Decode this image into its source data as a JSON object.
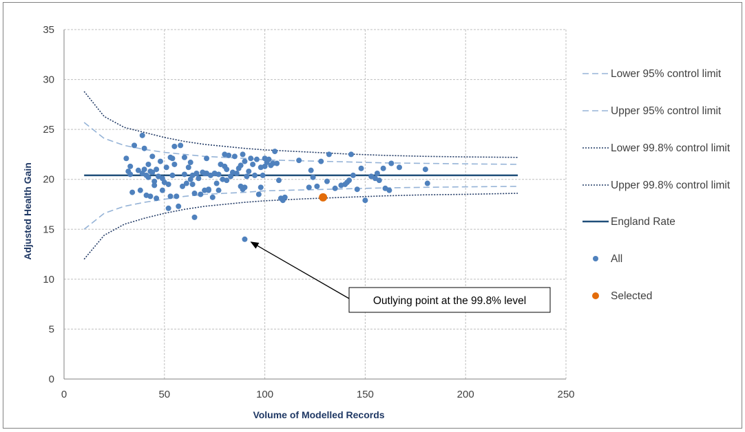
{
  "chart_data": {
    "type": "scatter",
    "title": "",
    "xlabel": "Volume of Modelled Records",
    "ylabel": "Adjusted Health Gain",
    "xlim": [
      0,
      250
    ],
    "ylim": [
      0,
      35
    ],
    "x_ticks": [
      "0",
      "50",
      "100",
      "150",
      "200",
      "250"
    ],
    "y_ticks": [
      "0",
      "5",
      "10",
      "15",
      "20",
      "25",
      "30",
      "35"
    ],
    "x_tick_values": [
      0,
      50,
      100,
      150,
      200,
      250
    ],
    "y_tick_values": [
      0,
      5,
      10,
      15,
      20,
      25,
      30,
      35
    ],
    "grid": true,
    "legend_position": "right",
    "england_rate": 20.4,
    "series": [
      {
        "name": "Lower 95% control limit",
        "kind": "dashed-line",
        "color": "#95b3d7",
        "points": [
          [
            10,
            15.0
          ],
          [
            20,
            16.6
          ],
          [
            30,
            17.3
          ],
          [
            40,
            17.7
          ],
          [
            50,
            18.0
          ],
          [
            60,
            18.3
          ],
          [
            70,
            18.5
          ],
          [
            80,
            18.6
          ],
          [
            90,
            18.7
          ],
          [
            100,
            18.85
          ],
          [
            120,
            18.95
          ],
          [
            140,
            19.05
          ],
          [
            160,
            19.15
          ],
          [
            180,
            19.2
          ],
          [
            200,
            19.25
          ],
          [
            226,
            19.3
          ]
        ]
      },
      {
        "name": "Upper 95% control limit",
        "kind": "dashed-line",
        "color": "#95b3d7",
        "points": [
          [
            10,
            25.7
          ],
          [
            20,
            24.1
          ],
          [
            30,
            23.4
          ],
          [
            40,
            23.0
          ],
          [
            50,
            22.7
          ],
          [
            60,
            22.5
          ],
          [
            70,
            22.3
          ],
          [
            80,
            22.2
          ],
          [
            90,
            22.1
          ],
          [
            100,
            21.95
          ],
          [
            120,
            21.85
          ],
          [
            140,
            21.75
          ],
          [
            160,
            21.65
          ],
          [
            180,
            21.6
          ],
          [
            200,
            21.55
          ],
          [
            226,
            21.5
          ]
        ]
      },
      {
        "name": "Lower 99.8% control limit",
        "kind": "dotted-line",
        "color": "#1f3864",
        "points": [
          [
            10,
            12.0
          ],
          [
            20,
            14.4
          ],
          [
            30,
            15.5
          ],
          [
            40,
            16.1
          ],
          [
            50,
            16.6
          ],
          [
            60,
            17.0
          ],
          [
            70,
            17.3
          ],
          [
            80,
            17.5
          ],
          [
            90,
            17.7
          ],
          [
            100,
            17.85
          ],
          [
            120,
            18.05
          ],
          [
            140,
            18.2
          ],
          [
            160,
            18.35
          ],
          [
            180,
            18.45
          ],
          [
            200,
            18.5
          ],
          [
            226,
            18.6
          ]
        ]
      },
      {
        "name": "Upper 99.8% control limit",
        "kind": "dotted-line",
        "color": "#1f3864",
        "points": [
          [
            10,
            28.8
          ],
          [
            20,
            26.3
          ],
          [
            30,
            25.2
          ],
          [
            40,
            24.7
          ],
          [
            50,
            24.2
          ],
          [
            60,
            23.8
          ],
          [
            70,
            23.5
          ],
          [
            80,
            23.3
          ],
          [
            90,
            23.1
          ],
          [
            100,
            22.95
          ],
          [
            120,
            22.75
          ],
          [
            140,
            22.55
          ],
          [
            160,
            22.4
          ],
          [
            180,
            22.3
          ],
          [
            200,
            22.25
          ],
          [
            226,
            22.2
          ]
        ]
      },
      {
        "name": "England Rate",
        "kind": "solid-line",
        "color": "#1f4e79",
        "points": [
          [
            10,
            20.4
          ],
          [
            226,
            20.4
          ]
        ]
      },
      {
        "name": "All",
        "kind": "points",
        "color": "#4f81bd",
        "points": [
          [
            31,
            22.1
          ],
          [
            32,
            20.8
          ],
          [
            33,
            21.3
          ],
          [
            33,
            20.5
          ],
          [
            34,
            18.7
          ],
          [
            35,
            23.4
          ],
          [
            37,
            20.9
          ],
          [
            38,
            18.9
          ],
          [
            39,
            24.4
          ],
          [
            39,
            20.6
          ],
          [
            40,
            23.1
          ],
          [
            40,
            21.0
          ],
          [
            41,
            20.4
          ],
          [
            41,
            18.4
          ],
          [
            42,
            21.5
          ],
          [
            42,
            20.2
          ],
          [
            43,
            20.8
          ],
          [
            43,
            18.3
          ],
          [
            44,
            22.3
          ],
          [
            44,
            20.7
          ],
          [
            45,
            19.8
          ],
          [
            45,
            19.4
          ],
          [
            46,
            18.1
          ],
          [
            46,
            21.0
          ],
          [
            47,
            20.3
          ],
          [
            48,
            21.8
          ],
          [
            49,
            18.9
          ],
          [
            49,
            20.1
          ],
          [
            50,
            19.7
          ],
          [
            51,
            21.2
          ],
          [
            52,
            19.5
          ],
          [
            52,
            17.1
          ],
          [
            53,
            22.2
          ],
          [
            53,
            18.3
          ],
          [
            54,
            22.1
          ],
          [
            54,
            20.4
          ],
          [
            55,
            23.3
          ],
          [
            55,
            21.5
          ],
          [
            56,
            18.3
          ],
          [
            57,
            17.3
          ],
          [
            58,
            23.4
          ],
          [
            59,
            19.3
          ],
          [
            60,
            22.2
          ],
          [
            60,
            20.5
          ],
          [
            61,
            19.6
          ],
          [
            62,
            21.2
          ],
          [
            63,
            21.7
          ],
          [
            63,
            20.0
          ],
          [
            64,
            19.5
          ],
          [
            64,
            20.4
          ],
          [
            65,
            18.6
          ],
          [
            65,
            16.2
          ],
          [
            66,
            20.6
          ],
          [
            67,
            20.1
          ],
          [
            68,
            18.5
          ],
          [
            69,
            20.7
          ],
          [
            70,
            20.6
          ],
          [
            70,
            18.9
          ],
          [
            71,
            22.1
          ],
          [
            71,
            20.6
          ],
          [
            72,
            19.0
          ],
          [
            72,
            18.9
          ],
          [
            73,
            20.4
          ],
          [
            74,
            18.2
          ],
          [
            75,
            20.6
          ],
          [
            76,
            19.6
          ],
          [
            77,
            20.5
          ],
          [
            77,
            18.9
          ],
          [
            78,
            21.5
          ],
          [
            79,
            20.0
          ],
          [
            80,
            22.5
          ],
          [
            80,
            21.3
          ],
          [
            81,
            21.0
          ],
          [
            81,
            19.9
          ],
          [
            82,
            22.4
          ],
          [
            83,
            20.3
          ],
          [
            84,
            20.7
          ],
          [
            85,
            22.3
          ],
          [
            86,
            20.6
          ],
          [
            87,
            21.1
          ],
          [
            88,
            21.4
          ],
          [
            88,
            19.3
          ],
          [
            89,
            22.5
          ],
          [
            89,
            19.0
          ],
          [
            90,
            21.8
          ],
          [
            90,
            19.2
          ],
          [
            90,
            14.0
          ],
          [
            91,
            20.3
          ],
          [
            92,
            20.8
          ],
          [
            93,
            22.1
          ],
          [
            94,
            21.5
          ],
          [
            95,
            20.4
          ],
          [
            96,
            22.0
          ],
          [
            97,
            18.5
          ],
          [
            98,
            21.2
          ],
          [
            98,
            19.2
          ],
          [
            99,
            20.4
          ],
          [
            100,
            22.1
          ],
          [
            100,
            21.3
          ],
          [
            101,
            21.7
          ],
          [
            102,
            22.0
          ],
          [
            103,
            21.4
          ],
          [
            104,
            21.6
          ],
          [
            105,
            22.8
          ],
          [
            106,
            21.6
          ],
          [
            107,
            19.9
          ],
          [
            108,
            18.1
          ],
          [
            109,
            17.9
          ],
          [
            110,
            18.2
          ],
          [
            117,
            21.9
          ],
          [
            122,
            19.2
          ],
          [
            123,
            20.9
          ],
          [
            124,
            20.2
          ],
          [
            126,
            19.3
          ],
          [
            128,
            21.8
          ],
          [
            131,
            19.8
          ],
          [
            132,
            22.5
          ],
          [
            135,
            19.1
          ],
          [
            138,
            19.4
          ],
          [
            140,
            19.5
          ],
          [
            141,
            19.7
          ],
          [
            142,
            19.9
          ],
          [
            143,
            22.5
          ],
          [
            144,
            20.4
          ],
          [
            146,
            19.0
          ],
          [
            148,
            21.1
          ],
          [
            150,
            17.9
          ],
          [
            153,
            20.3
          ],
          [
            155,
            20.1
          ],
          [
            156,
            20.6
          ],
          [
            157,
            19.9
          ],
          [
            159,
            21.1
          ],
          [
            160,
            19.1
          ],
          [
            162,
            18.9
          ],
          [
            163,
            21.6
          ],
          [
            167,
            21.2
          ],
          [
            180,
            21.0
          ],
          [
            181,
            19.6
          ]
        ]
      },
      {
        "name": "Selected",
        "kind": "points",
        "color": "#e36c0a",
        "points": [
          [
            129,
            18.2
          ]
        ]
      }
    ],
    "annotation": {
      "text": "Outlying point at the 99.8% level",
      "target": [
        90,
        14.0
      ]
    }
  }
}
